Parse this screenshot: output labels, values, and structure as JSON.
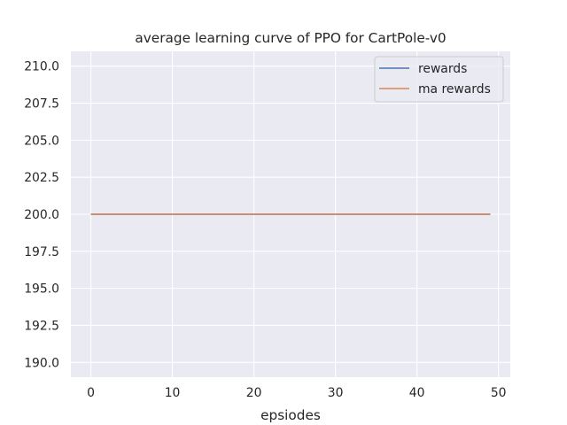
{
  "chart_data": {
    "type": "line",
    "title": "average learning curve of PPO for CartPole-v0",
    "xlabel": "epsiodes",
    "ylabel": "",
    "xlim": [
      -2.45,
      51.45
    ],
    "ylim": [
      189.0,
      211.0
    ],
    "x_ticks": [
      0,
      10,
      20,
      30,
      40,
      50
    ],
    "x_tick_labels": [
      "0",
      "10",
      "20",
      "30",
      "40",
      "50"
    ],
    "y_ticks": [
      190.0,
      192.5,
      195.0,
      197.5,
      200.0,
      202.5,
      205.0,
      207.5,
      210.0
    ],
    "y_tick_labels": [
      "190.0",
      "192.5",
      "195.0",
      "197.5",
      "200.0",
      "202.5",
      "205.0",
      "207.5",
      "210.0"
    ],
    "grid": true,
    "legend_position": "top-right",
    "x": [
      0,
      1,
      2,
      3,
      4,
      5,
      6,
      7,
      8,
      9,
      10,
      11,
      12,
      13,
      14,
      15,
      16,
      17,
      18,
      19,
      20,
      21,
      22,
      23,
      24,
      25,
      26,
      27,
      28,
      29,
      30,
      31,
      32,
      33,
      34,
      35,
      36,
      37,
      38,
      39,
      40,
      41,
      42,
      43,
      44,
      45,
      46,
      47,
      48,
      49
    ],
    "series": [
      {
        "name": "rewards",
        "color": "#4c72b0",
        "values": [
          200,
          200,
          200,
          200,
          200,
          200,
          200,
          200,
          200,
          200,
          200,
          200,
          200,
          200,
          200,
          200,
          200,
          200,
          200,
          200,
          200,
          200,
          200,
          200,
          200,
          200,
          200,
          200,
          200,
          200,
          200,
          200,
          200,
          200,
          200,
          200,
          200,
          200,
          200,
          200,
          200,
          200,
          200,
          200,
          200,
          200,
          200,
          200,
          200,
          200
        ]
      },
      {
        "name": "ma rewards",
        "color": "#dd8452",
        "values": [
          200,
          200,
          200,
          200,
          200,
          200,
          200,
          200,
          200,
          200,
          200,
          200,
          200,
          200,
          200,
          200,
          200,
          200,
          200,
          200,
          200,
          200,
          200,
          200,
          200,
          200,
          200,
          200,
          200,
          200,
          200,
          200,
          200,
          200,
          200,
          200,
          200,
          200,
          200,
          200,
          200,
          200,
          200,
          200,
          200,
          200,
          200,
          200,
          200,
          200
        ]
      }
    ]
  },
  "colors": {
    "plot_background": "#eaeaf2",
    "grid": "#ffffff",
    "text": "#262626"
  }
}
